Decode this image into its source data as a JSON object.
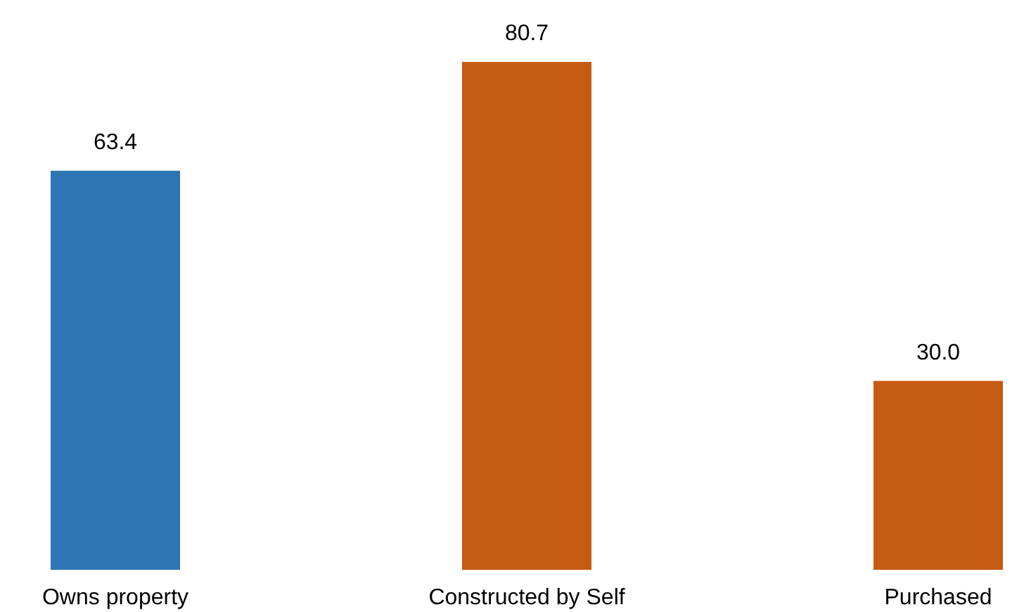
{
  "chart_data": {
    "type": "bar",
    "categories": [
      "Owns property",
      "Constructed by Self",
      "Purchased"
    ],
    "values": [
      63.4,
      80.7,
      30.0
    ],
    "colors": [
      "#2e75b6",
      "#c55a11",
      "#c55a11"
    ],
    "value_labels": [
      "63.4",
      "80.7",
      "30.0"
    ]
  }
}
